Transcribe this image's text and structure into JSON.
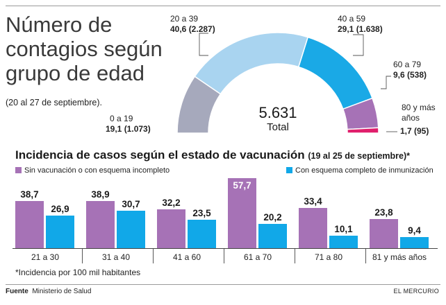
{
  "chart_data": [
    {
      "type": "pie",
      "variant": "semicircle-donut",
      "title": "Número de contagios según grupo de edad",
      "subtitle": "(20 al 27 de septiembre).",
      "total_value": "5.631",
      "total_label": "Total",
      "slices": [
        {
          "label": "0 a 19",
          "percent": 19.1,
          "count": 1073,
          "value_text": "19,1 (1.073)",
          "color": "#a6a9bc"
        },
        {
          "label": "20 a 39",
          "percent": 40.6,
          "count": 2287,
          "value_text": "40,6 (2.287)",
          "color": "#a9d4f0"
        },
        {
          "label": "40 a 59",
          "percent": 29.1,
          "count": 1638,
          "value_text": "29,1 (1.638)",
          "color": "#1aa9e6"
        },
        {
          "label": "60 a 79",
          "percent": 9.6,
          "count": 538,
          "value_text": "9,6 (538)",
          "color": "#a672b6"
        },
        {
          "label": "80 y más años",
          "percent": 1.7,
          "count": 95,
          "value_text": "1,7 (95)",
          "color": "#e01e6c"
        }
      ]
    },
    {
      "type": "bar",
      "title": "Incidencia de casos según el estado de vacunación",
      "title_dates": "(19 al 25 de septiembre)*",
      "categories": [
        "21 a 30",
        "31 a 40",
        "41 a 60",
        "61 a 70",
        "71 a 80",
        "81 y más años"
      ],
      "series": [
        {
          "name": "Sin vacunación o con esquema incompleto",
          "color": "#a672b6",
          "values": [
            38.7,
            38.9,
            32.2,
            57.7,
            33.4,
            23.8
          ],
          "labels": [
            "38,7",
            "38,9",
            "32,2",
            "57,7",
            "33,4",
            "23,8"
          ]
        },
        {
          "name": "Con esquema completo de inmunización",
          "color": "#11a8e8",
          "values": [
            26.9,
            30.7,
            23.5,
            20.2,
            10.1,
            9.4
          ],
          "labels": [
            "26,9",
            "30,7",
            "23,5",
            "20,2",
            "10,1",
            "9,4"
          ]
        }
      ],
      "ylim": [
        0,
        60
      ],
      "footnote": "*Incidencia por 100 mil habitantes"
    }
  ],
  "footer": {
    "source_label": "Fuente",
    "source_text": "Ministerio de Salud",
    "brand": "EL MERCURIO"
  }
}
